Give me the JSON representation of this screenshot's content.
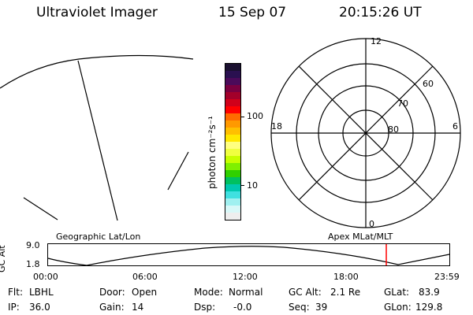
{
  "header": {
    "instrument": "Ultraviolet Imager",
    "date": "15 Sep 07",
    "time": "20:15:26 UT"
  },
  "colorbar": {
    "label": "photon cm⁻²s⁻¹",
    "ticks": [
      "100",
      "10"
    ],
    "colors": [
      "#1a1030",
      "#2a1050",
      "#4b0a5a",
      "#7a0040",
      "#a3002a",
      "#d0001a",
      "#ff0000",
      "#ff6a00",
      "#ff9900",
      "#ffbf00",
      "#ffe800",
      "#ffff80",
      "#f0ff40",
      "#c8ff00",
      "#80f000",
      "#30d000",
      "#00c060",
      "#00c8b0",
      "#40e0e0",
      "#a0f0f0",
      "#d8f8f8",
      "#eeeeee"
    ]
  },
  "polar_plot": {
    "labels": {
      "top": "12",
      "bottom": "0",
      "left": "18",
      "right": "6"
    },
    "rings": [
      "60",
      "70",
      "80"
    ]
  },
  "timeline": {
    "ylabel": "GC Alt",
    "yticks": [
      "9.0",
      "1.8"
    ],
    "left_title": "Geographic Lat/Lon",
    "right_title": "Apex MLat/MLT",
    "xticks": [
      "00:00",
      "06:00",
      "12:00",
      "18:00",
      "23:59"
    ],
    "marker_color": "#ff0000"
  },
  "status": {
    "flt_label": "Flt:",
    "flt_value": "LBHL",
    "ip_label": "IP:",
    "ip_value": "36.0",
    "door_label": "Door:",
    "door_value": "Open",
    "gain_label": "Gain:",
    "gain_value": "14",
    "mode_label": "Mode:",
    "mode_value": "Normal",
    "dsp_label": "Dsp:",
    "dsp_value": "-0.0",
    "gcalt_label": "GC Alt:",
    "gcalt_value": "2.1 Re",
    "seq_label": "Seq:",
    "seq_value": "39",
    "glat_label": "GLat:",
    "glat_value": "83.9",
    "glon_label": "GLon:",
    "glon_value": "129.8"
  }
}
